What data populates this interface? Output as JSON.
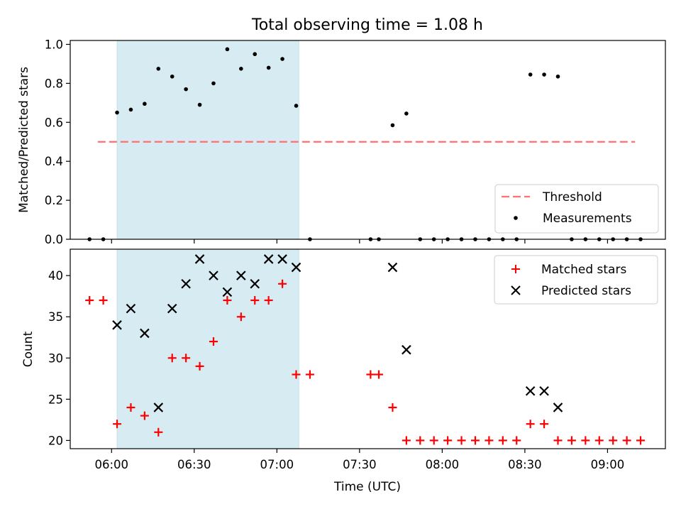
{
  "chart_data": [
    {
      "type": "scatter",
      "title": "Total observing time = 1.08 h",
      "xlabel": "",
      "ylabel": "Matched/Predicted stars",
      "ylim": [
        0,
        1.02
      ],
      "xlim": [
        "05:45",
        "09:21"
      ],
      "yticks": [
        "0.0",
        "0.2",
        "0.4",
        "0.6",
        "0.8",
        "1.0"
      ],
      "ytick_values": [
        0,
        0.2,
        0.4,
        0.6,
        0.8,
        1.0
      ],
      "shaded_span": [
        "06:02",
        "07:08"
      ],
      "threshold": {
        "name": "Threshold",
        "y": 0.5,
        "x_range": [
          "05:55",
          "09:10"
        ],
        "color": "#ff7070"
      },
      "legend_position": "lower-right",
      "series": [
        {
          "name": "Measurements",
          "color": "#000000",
          "x": [
            "05:57",
            "06:02",
            "06:07",
            "06:12",
            "06:17",
            "06:22",
            "06:27",
            "06:32",
            "06:37",
            "06:42",
            "06:47",
            "06:52",
            "06:57",
            "07:02",
            "07:07",
            "07:12",
            "07:34",
            "07:37",
            "07:42",
            "07:47",
            "07:52",
            "07:57",
            "08:02",
            "08:07",
            "08:12",
            "08:17",
            "08:22",
            "08:27",
            "08:32",
            "08:37",
            "08:42",
            "08:47",
            "08:52",
            "08:57",
            "09:02",
            "09:07",
            "09:12",
            "05:52"
          ],
          "y": [
            0.0,
            0.65,
            0.665,
            0.695,
            0.875,
            0.835,
            0.77,
            0.69,
            0.8,
            0.975,
            0.875,
            0.95,
            0.88,
            0.925,
            0.685,
            0.0,
            0.0,
            0.0,
            0.585,
            0.645,
            0.0,
            0.0,
            0.0,
            0.0,
            0.0,
            0.0,
            0.0,
            0.0,
            0.845,
            0.845,
            0.835,
            0.0,
            0.0,
            0.0,
            0.0,
            0.0,
            0.0,
            0.0
          ]
        }
      ]
    },
    {
      "type": "scatter",
      "title": "",
      "xlabel": "Time (UTC)",
      "ylabel": "Count",
      "ylim": [
        19,
        43.2
      ],
      "xlim": [
        "05:45",
        "09:21"
      ],
      "yticks": [
        "20",
        "25",
        "30",
        "35",
        "40"
      ],
      "ytick_values": [
        20,
        25,
        30,
        35,
        40
      ],
      "xticks": [
        "06:00",
        "06:30",
        "07:00",
        "07:30",
        "08:00",
        "08:30",
        "09:00"
      ],
      "shaded_span": [
        "06:02",
        "07:08"
      ],
      "legend_position": "upper-right",
      "series": [
        {
          "name": "Matched stars",
          "color": "#ff0000",
          "marker": "plus",
          "x": [
            "05:52",
            "05:57",
            "06:02",
            "06:07",
            "06:12",
            "06:17",
            "06:22",
            "06:27",
            "06:32",
            "06:37",
            "06:42",
            "06:47",
            "06:52",
            "06:57",
            "07:02",
            "07:07",
            "07:12",
            "07:34",
            "07:37",
            "07:42",
            "07:47",
            "07:52",
            "07:57",
            "08:02",
            "08:07",
            "08:12",
            "08:17",
            "08:22",
            "08:27",
            "08:32",
            "08:37",
            "08:42",
            "08:47",
            "08:52",
            "08:57",
            "09:02",
            "09:07",
            "09:12"
          ],
          "y": [
            37,
            37,
            22,
            24,
            23,
            21,
            30,
            30,
            29,
            32,
            37,
            35,
            37,
            37,
            39,
            28,
            28,
            28,
            28,
            24,
            20,
            20,
            20,
            20,
            20,
            20,
            20,
            20,
            20,
            22,
            22,
            20,
            20,
            20,
            20,
            20,
            20,
            20
          ]
        },
        {
          "name": "Predicted stars",
          "color": "#000000",
          "marker": "x",
          "x": [
            "06:02",
            "06:07",
            "06:12",
            "06:17",
            "06:22",
            "06:27",
            "06:32",
            "06:37",
            "06:42",
            "06:47",
            "06:52",
            "06:57",
            "07:02",
            "07:07",
            "07:42",
            "07:47",
            "08:32",
            "08:37",
            "08:42"
          ],
          "y": [
            34,
            36,
            33,
            24,
            36,
            39,
            42,
            40,
            38,
            40,
            39,
            42,
            42,
            41,
            41,
            31,
            26,
            26,
            24
          ]
        }
      ]
    }
  ]
}
